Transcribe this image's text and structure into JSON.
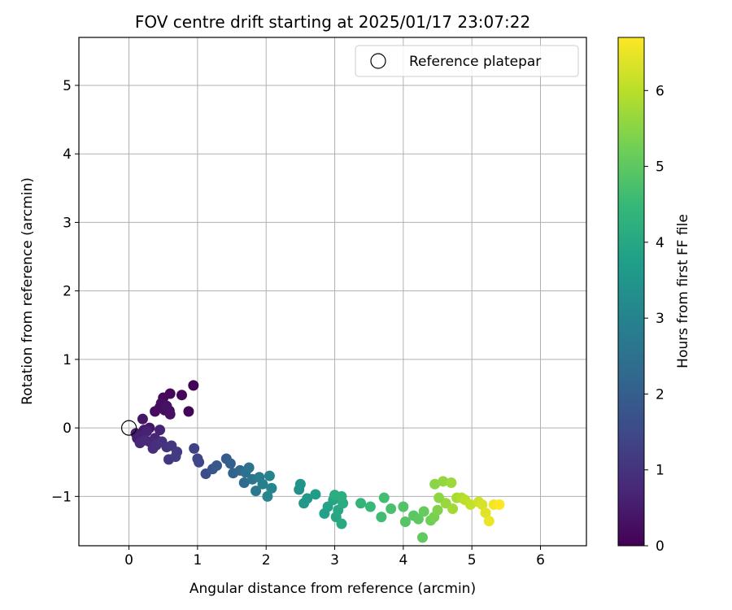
{
  "chart_data": {
    "type": "scatter",
    "title": "FOV centre drift starting at 2025/01/17 23:07:22",
    "xlabel": "Angular distance from reference (arcmin)",
    "ylabel": "Rotation from reference (arcmin)",
    "xlim": [
      -0.73,
      6.67
    ],
    "ylim": [
      -1.72,
      5.7
    ],
    "xticks": [
      0,
      1,
      2,
      3,
      4,
      5,
      6
    ],
    "yticks": [
      -1,
      0,
      1,
      2,
      3,
      4,
      5
    ],
    "grid": true,
    "legend": {
      "placement": "top-right",
      "entries": [
        "Reference platepar"
      ]
    },
    "reference_point": {
      "x": 0.0,
      "y": 0.0,
      "marker": "open-circle"
    },
    "colorbar": {
      "label": "Hours from first FF file",
      "min": 0,
      "max": 6.7,
      "ticks": [
        0,
        1,
        2,
        3,
        4,
        5,
        6
      ],
      "colormap": "viridis"
    },
    "colormap_stops": [
      "#440154",
      "#482878",
      "#3e4989",
      "#31688e",
      "#26828e",
      "#1f9e89",
      "#35b779",
      "#6ece58",
      "#b5de2b",
      "#fde725"
    ],
    "points": [
      {
        "x": 0.94,
        "y": 0.62,
        "t": 0.05
      },
      {
        "x": 0.87,
        "y": 0.24,
        "t": 0.08
      },
      {
        "x": 0.77,
        "y": 0.48,
        "t": 0.1
      },
      {
        "x": 0.6,
        "y": 0.5,
        "t": 0.12
      },
      {
        "x": 0.5,
        "y": 0.44,
        "t": 0.15
      },
      {
        "x": 0.59,
        "y": 0.25,
        "t": 0.18
      },
      {
        "x": 0.52,
        "y": 0.26,
        "t": 0.2
      },
      {
        "x": 0.45,
        "y": 0.3,
        "t": 0.22
      },
      {
        "x": 0.38,
        "y": 0.24,
        "t": 0.25
      },
      {
        "x": 0.47,
        "y": 0.36,
        "t": 0.27
      },
      {
        "x": 0.6,
        "y": 0.2,
        "t": 0.3
      },
      {
        "x": 0.55,
        "y": 0.32,
        "t": 0.32
      },
      {
        "x": 0.2,
        "y": 0.13,
        "t": 0.38
      },
      {
        "x": 0.3,
        "y": 0.0,
        "t": 0.42
      },
      {
        "x": 0.22,
        "y": -0.03,
        "t": 0.45
      },
      {
        "x": 0.1,
        "y": -0.08,
        "t": 0.5
      },
      {
        "x": 0.12,
        "y": -0.15,
        "t": 0.55
      },
      {
        "x": 0.18,
        "y": -0.12,
        "t": 0.6
      },
      {
        "x": 0.26,
        "y": -0.05,
        "t": 0.62
      },
      {
        "x": 0.45,
        "y": -0.03,
        "t": 0.65
      },
      {
        "x": 0.38,
        "y": -0.15,
        "t": 0.7
      },
      {
        "x": 0.16,
        "y": -0.22,
        "t": 0.72
      },
      {
        "x": 0.3,
        "y": -0.2,
        "t": 0.75
      },
      {
        "x": 0.23,
        "y": -0.18,
        "t": 0.8
      },
      {
        "x": 0.35,
        "y": -0.3,
        "t": 0.85
      },
      {
        "x": 0.4,
        "y": -0.25,
        "t": 0.9
      },
      {
        "x": 0.48,
        "y": -0.2,
        "t": 0.95
      },
      {
        "x": 0.55,
        "y": -0.28,
        "t": 1.0
      },
      {
        "x": 0.62,
        "y": -0.26,
        "t": 1.05
      },
      {
        "x": 0.58,
        "y": -0.46,
        "t": 1.1
      },
      {
        "x": 0.7,
        "y": -0.35,
        "t": 1.15
      },
      {
        "x": 0.68,
        "y": -0.42,
        "t": 1.2
      },
      {
        "x": 0.95,
        "y": -0.3,
        "t": 1.3
      },
      {
        "x": 1.0,
        "y": -0.45,
        "t": 1.4
      },
      {
        "x": 1.02,
        "y": -0.5,
        "t": 1.45
      },
      {
        "x": 1.12,
        "y": -0.67,
        "t": 1.6
      },
      {
        "x": 1.22,
        "y": -0.6,
        "t": 1.75
      },
      {
        "x": 1.28,
        "y": -0.55,
        "t": 1.85
      },
      {
        "x": 1.42,
        "y": -0.45,
        "t": 1.95
      },
      {
        "x": 1.48,
        "y": -0.52,
        "t": 2.05
      },
      {
        "x": 1.52,
        "y": -0.66,
        "t": 2.15
      },
      {
        "x": 1.62,
        "y": -0.62,
        "t": 2.25
      },
      {
        "x": 1.68,
        "y": -0.8,
        "t": 2.35
      },
      {
        "x": 1.7,
        "y": -0.65,
        "t": 2.45
      },
      {
        "x": 1.75,
        "y": -0.58,
        "t": 2.55
      },
      {
        "x": 1.8,
        "y": -0.75,
        "t": 2.6
      },
      {
        "x": 1.85,
        "y": -0.92,
        "t": 2.7
      },
      {
        "x": 1.9,
        "y": -0.72,
        "t": 2.8
      },
      {
        "x": 1.95,
        "y": -0.82,
        "t": 2.9
      },
      {
        "x": 2.05,
        "y": -0.7,
        "t": 3.0
      },
      {
        "x": 2.08,
        "y": -0.88,
        "t": 3.05
      },
      {
        "x": 2.02,
        "y": -1.0,
        "t": 3.1
      },
      {
        "x": 2.48,
        "y": -0.9,
        "t": 3.35
      },
      {
        "x": 2.5,
        "y": -0.82,
        "t": 3.45
      },
      {
        "x": 2.55,
        "y": -1.1,
        "t": 3.55
      },
      {
        "x": 2.6,
        "y": -1.03,
        "t": 3.6
      },
      {
        "x": 2.72,
        "y": -0.97,
        "t": 3.7
      },
      {
        "x": 2.85,
        "y": -1.25,
        "t": 3.8
      },
      {
        "x": 2.9,
        "y": -1.15,
        "t": 3.85
      },
      {
        "x": 2.98,
        "y": -1.05,
        "t": 3.9
      },
      {
        "x": 3.02,
        "y": -1.3,
        "t": 3.95
      },
      {
        "x": 3.05,
        "y": -1.2,
        "t": 4.0
      },
      {
        "x": 3.1,
        "y": -1.4,
        "t": 4.05
      },
      {
        "x": 3.12,
        "y": -1.1,
        "t": 4.1
      },
      {
        "x": 3.0,
        "y": -0.98,
        "t": 4.15
      },
      {
        "x": 3.1,
        "y": -1.0,
        "t": 4.2
      },
      {
        "x": 3.38,
        "y": -1.1,
        "t": 4.4
      },
      {
        "x": 3.52,
        "y": -1.15,
        "t": 4.5
      },
      {
        "x": 3.68,
        "y": -1.3,
        "t": 4.6
      },
      {
        "x": 3.72,
        "y": -1.02,
        "t": 4.65
      },
      {
        "x": 3.82,
        "y": -1.18,
        "t": 4.75
      },
      {
        "x": 4.0,
        "y": -1.15,
        "t": 4.85
      },
      {
        "x": 4.03,
        "y": -1.37,
        "t": 4.9
      },
      {
        "x": 4.15,
        "y": -1.28,
        "t": 4.95
      },
      {
        "x": 4.22,
        "y": -1.33,
        "t": 5.0
      },
      {
        "x": 4.28,
        "y": -1.6,
        "t": 5.05
      },
      {
        "x": 4.3,
        "y": -1.22,
        "t": 5.1
      },
      {
        "x": 4.4,
        "y": -1.35,
        "t": 5.2
      },
      {
        "x": 4.45,
        "y": -1.3,
        "t": 5.3
      },
      {
        "x": 4.5,
        "y": -1.2,
        "t": 5.4
      },
      {
        "x": 4.46,
        "y": -0.82,
        "t": 5.5
      },
      {
        "x": 4.52,
        "y": -1.02,
        "t": 5.55
      },
      {
        "x": 4.58,
        "y": -0.78,
        "t": 5.6
      },
      {
        "x": 4.62,
        "y": -1.1,
        "t": 5.65
      },
      {
        "x": 4.7,
        "y": -0.8,
        "t": 5.7
      },
      {
        "x": 4.72,
        "y": -1.18,
        "t": 5.75
      },
      {
        "x": 4.78,
        "y": -1.02,
        "t": 5.8
      },
      {
        "x": 4.85,
        "y": -1.02,
        "t": 5.9
      },
      {
        "x": 4.9,
        "y": -1.05,
        "t": 6.0
      },
      {
        "x": 4.98,
        "y": -1.12,
        "t": 6.1
      },
      {
        "x": 5.1,
        "y": -1.08,
        "t": 6.2
      },
      {
        "x": 5.15,
        "y": -1.12,
        "t": 6.3
      },
      {
        "x": 5.2,
        "y": -1.24,
        "t": 6.4
      },
      {
        "x": 5.25,
        "y": -1.36,
        "t": 6.5
      },
      {
        "x": 5.32,
        "y": -1.12,
        "t": 6.6
      },
      {
        "x": 5.4,
        "y": -1.12,
        "t": 6.7
      }
    ]
  }
}
